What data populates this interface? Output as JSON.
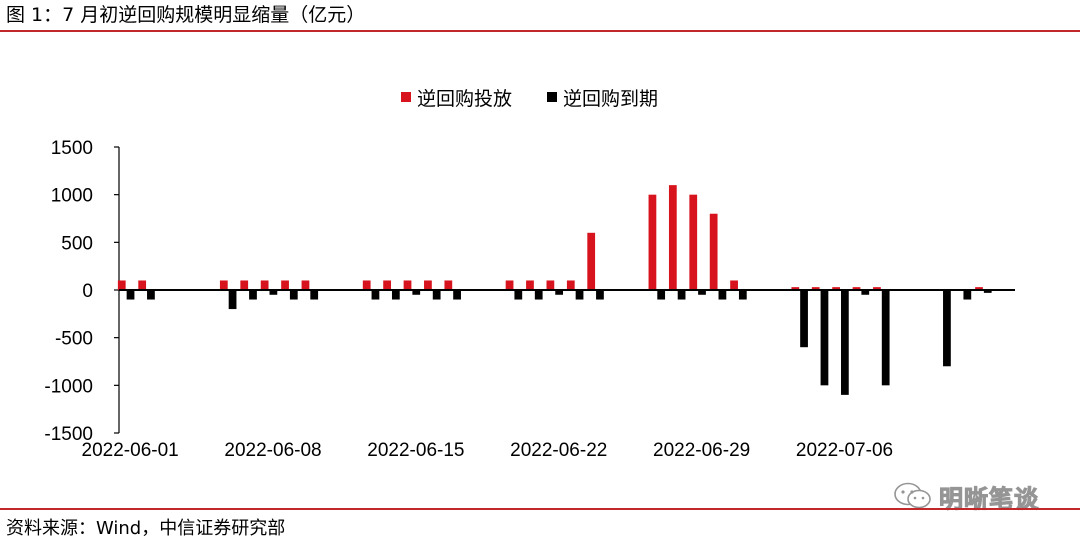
{
  "header": {
    "title": "图 1：7 月初逆回购规模明显缩量（亿元）"
  },
  "footer": {
    "source": "资料来源：Wind，中信证券研究部"
  },
  "watermark": {
    "text": "明晰笔谈",
    "icon": "wechat-icon"
  },
  "colors": {
    "issue": "#d7141d",
    "maturity": "#000000",
    "accent_rule": "#c0282c"
  },
  "chart_data": {
    "type": "bar",
    "ylim": [
      -1500,
      1500
    ],
    "yticks": [
      1500,
      1000,
      500,
      0,
      -500,
      -1000,
      -1500
    ],
    "xticks": [
      "2022-06-01",
      "2022-06-08",
      "2022-06-15",
      "2022-06-22",
      "2022-06-29",
      "2022-07-06"
    ],
    "legend_position": "top-center",
    "grid": false,
    "categories": [
      "2022-06-01",
      "2022-06-02",
      "2022-06-03",
      "2022-06-04",
      "2022-06-05",
      "2022-06-06",
      "2022-06-07",
      "2022-06-08",
      "2022-06-09",
      "2022-06-10",
      "2022-06-11",
      "2022-06-12",
      "2022-06-13",
      "2022-06-14",
      "2022-06-15",
      "2022-06-16",
      "2022-06-17",
      "2022-06-18",
      "2022-06-19",
      "2022-06-20",
      "2022-06-21",
      "2022-06-22",
      "2022-06-23",
      "2022-06-24",
      "2022-06-25",
      "2022-06-26",
      "2022-06-27",
      "2022-06-28",
      "2022-06-29",
      "2022-06-30",
      "2022-07-01",
      "2022-07-02",
      "2022-07-03",
      "2022-07-04",
      "2022-07-05",
      "2022-07-06",
      "2022-07-07",
      "2022-07-08",
      "2022-07-09",
      "2022-07-10",
      "2022-07-11",
      "2022-07-12",
      "2022-07-13"
    ],
    "series": [
      {
        "name": "逆回购投放",
        "color": "#d7141d",
        "values": [
          100,
          100,
          0,
          0,
          0,
          100,
          100,
          100,
          100,
          100,
          0,
          0,
          100,
          100,
          100,
          100,
          100,
          0,
          0,
          100,
          100,
          100,
          100,
          600,
          0,
          0,
          1000,
          1100,
          1000,
          800,
          100,
          0,
          0,
          30,
          30,
          30,
          30,
          30,
          0,
          0,
          0,
          0,
          30
        ]
      },
      {
        "name": "逆回购到期",
        "color": "#000000",
        "values": [
          -100,
          -100,
          0,
          0,
          0,
          -200,
          -100,
          -50,
          -100,
          -100,
          0,
          0,
          -100,
          -100,
          -50,
          -100,
          -100,
          0,
          0,
          -100,
          -100,
          -50,
          -100,
          -100,
          0,
          0,
          -100,
          -100,
          -50,
          -100,
          -100,
          0,
          0,
          -600,
          -1000,
          -1100,
          -50,
          -1000,
          0,
          0,
          -800,
          -100,
          -30
        ]
      }
    ]
  }
}
